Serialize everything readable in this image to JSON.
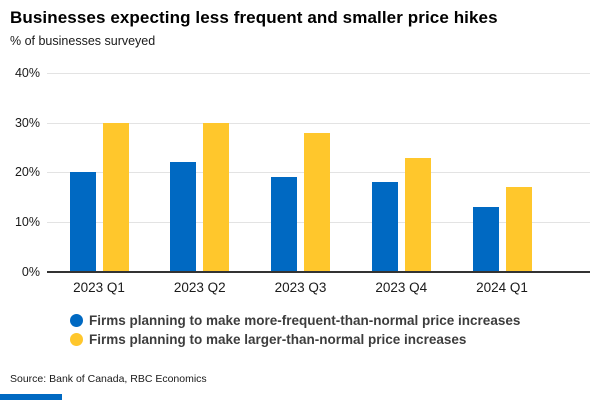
{
  "header": {
    "title": "Businesses expecting less frequent and smaller price hikes",
    "subtitle": "% of businesses surveyed"
  },
  "chart_data": {
    "type": "bar",
    "categories": [
      "2023 Q1",
      "2023 Q2",
      "2023 Q3",
      "2023 Q4",
      "2024 Q1"
    ],
    "series": [
      {
        "name": "Firms planning to make more-frequent-than-normal price increases",
        "color": "#0069c2",
        "values": [
          20,
          22,
          19,
          18,
          13
        ]
      },
      {
        "name": "Firms planning to make larger-than-normal price increases",
        "color": "#ffc72c",
        "values": [
          30,
          30,
          28,
          23,
          17
        ]
      }
    ],
    "title": "Businesses expecting less frequent and smaller price hikes",
    "xlabel": "",
    "ylabel": "% of businesses surveyed",
    "ylim": [
      0,
      40
    ],
    "ytick_values": [
      0,
      10,
      20,
      30,
      40
    ],
    "ytick_labels": [
      "0%",
      "10%",
      "20%",
      "30%",
      "40%"
    ],
    "grid": true,
    "legend_position": "bottom-left"
  },
  "source": "Source: Bank of Canada, RBC Economics",
  "colors": {
    "series_blue": "#0069c2",
    "series_yellow": "#ffc72c",
    "gridline": "#e3e3e3",
    "axis": "#333333",
    "brand": "#0069c2"
  }
}
